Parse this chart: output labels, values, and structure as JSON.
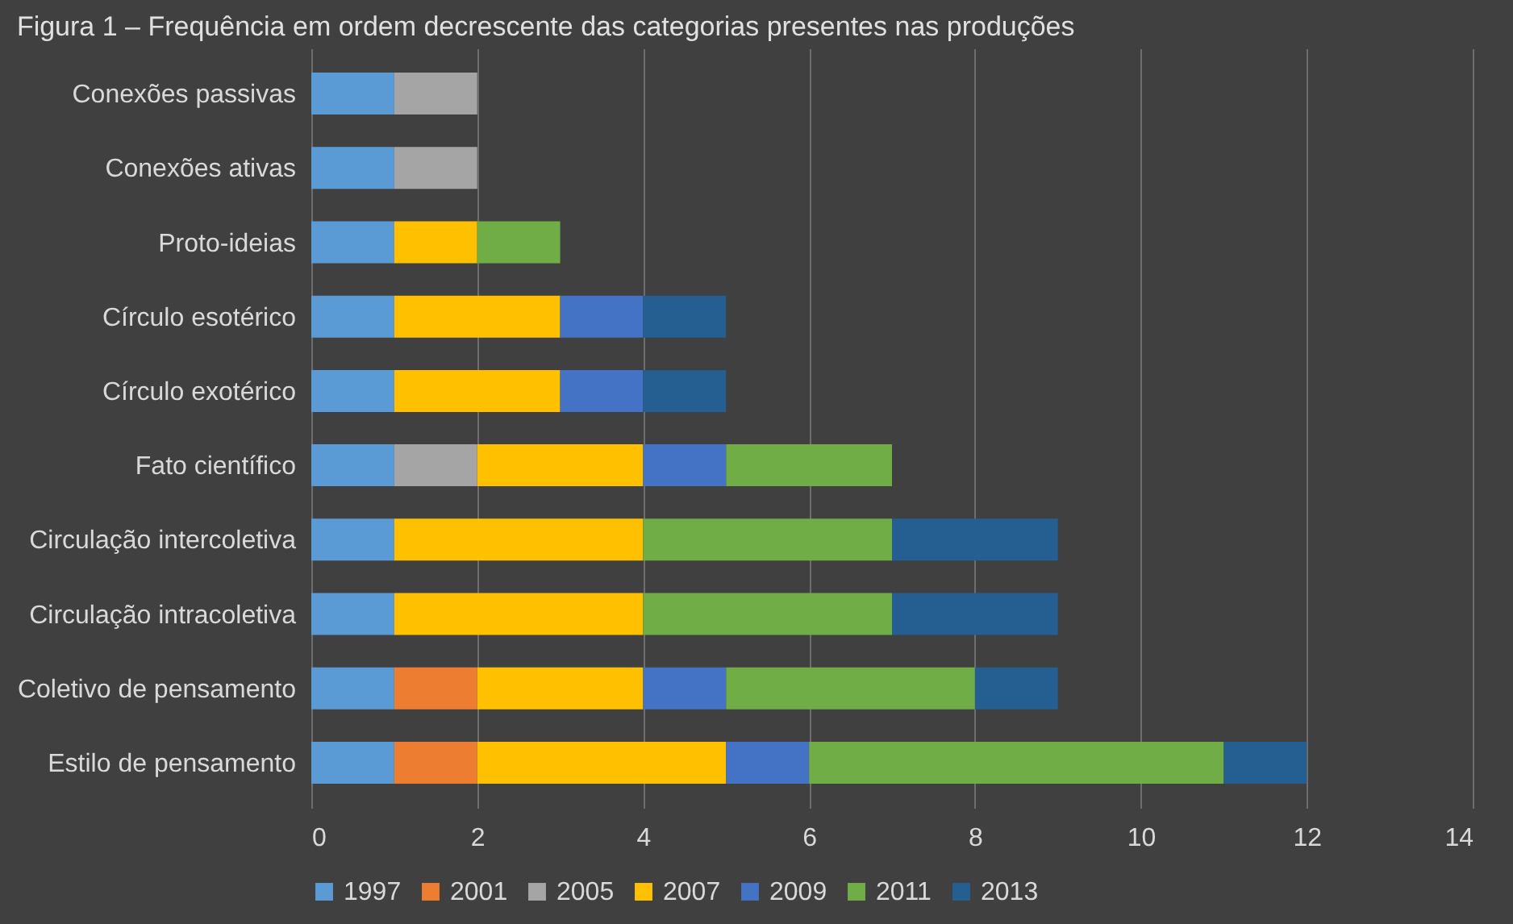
{
  "chart_data": {
    "type": "bar",
    "orientation": "horizontal",
    "stacked": true,
    "title": "Figura 1 – Frequência em ordem decrescente das categorias presentes nas produções",
    "categories": [
      "Conexões passivas",
      "Conexões ativas",
      "Proto-ideias",
      "Círculo esotérico",
      "Círculo exotérico",
      "Fato científico",
      "Circulação intercoletiva",
      "Circulação intracoletiva",
      "Coletivo de pensamento",
      "Estilo de pensamento"
    ],
    "series": [
      {
        "name": "1997",
        "color": "#5b9bd5",
        "values": [
          1,
          1,
          1,
          1,
          1,
          1,
          1,
          1,
          1,
          1
        ]
      },
      {
        "name": "2001",
        "color": "#ed7d31",
        "values": [
          null,
          null,
          null,
          null,
          null,
          null,
          null,
          null,
          1,
          1
        ]
      },
      {
        "name": "2005",
        "color": "#a5a5a5",
        "values": [
          1,
          1,
          null,
          null,
          null,
          1,
          null,
          null,
          null,
          null
        ]
      },
      {
        "name": "2007",
        "color": "#ffc000",
        "values": [
          null,
          null,
          1,
          2,
          2,
          2,
          3,
          3,
          2,
          3
        ]
      },
      {
        "name": "2009",
        "color": "#4472c4",
        "values": [
          null,
          null,
          null,
          1,
          1,
          1,
          null,
          null,
          1,
          1
        ]
      },
      {
        "name": "2011",
        "color": "#70ad47",
        "values": [
          null,
          null,
          1,
          null,
          null,
          2,
          3,
          3,
          3,
          5
        ]
      },
      {
        "name": "2013",
        "color": "#255e91",
        "values": [
          null,
          null,
          null,
          1,
          1,
          null,
          2,
          2,
          1,
          1
        ]
      }
    ],
    "xlim": [
      0,
      14
    ],
    "xticks": [
      0,
      2,
      4,
      6,
      8,
      10,
      12,
      14
    ],
    "grid": "x",
    "legend": "bottom"
  }
}
